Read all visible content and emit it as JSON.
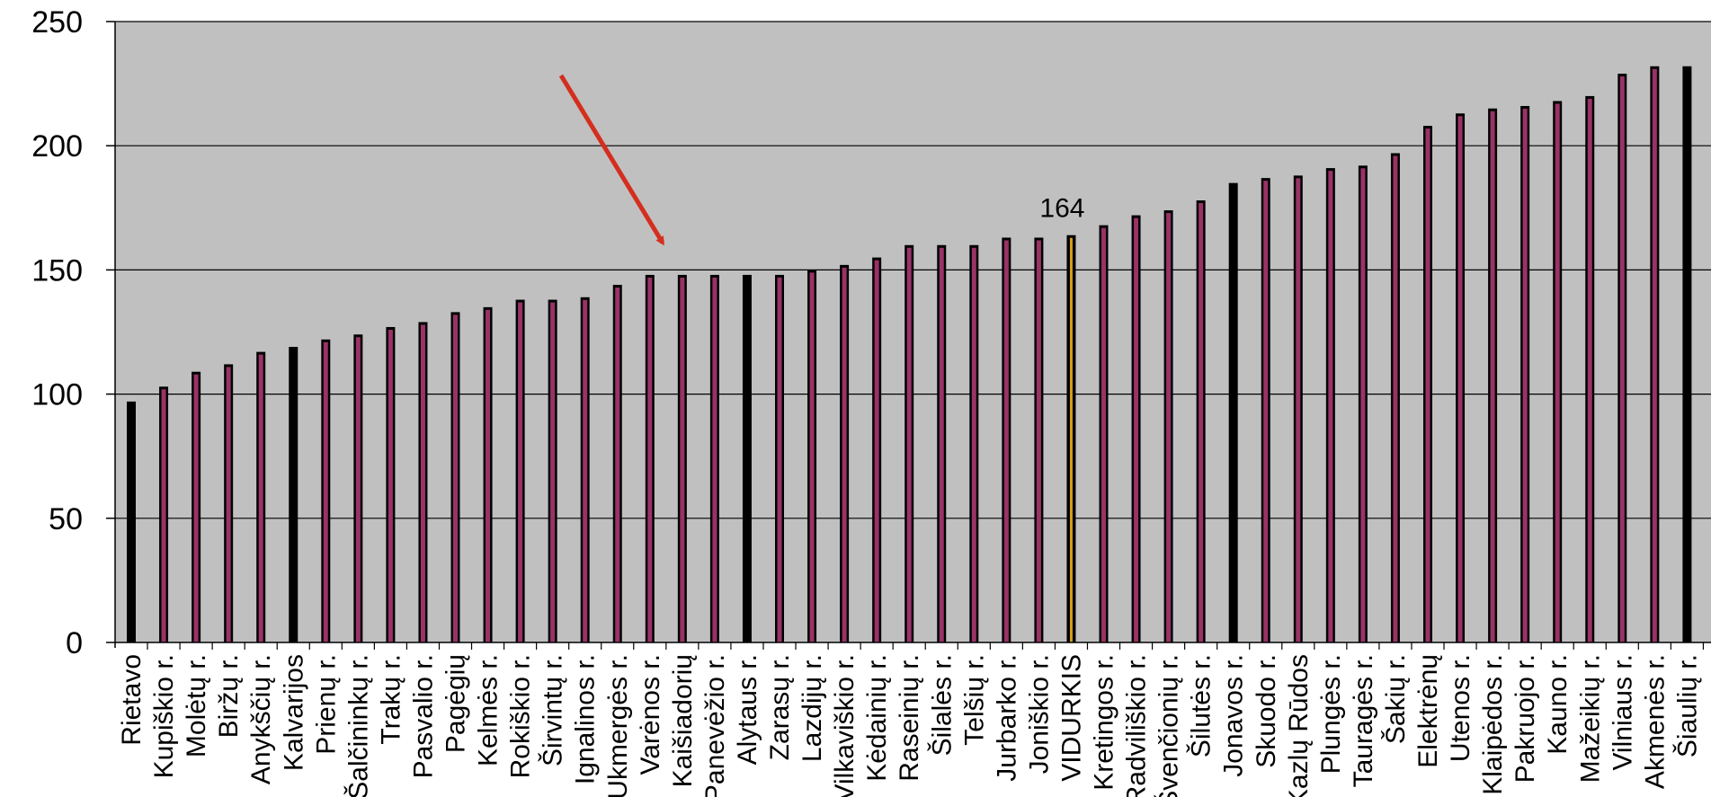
{
  "chart_data": {
    "type": "bar",
    "title": "",
    "xlabel": "",
    "ylabel": "",
    "ylim": [
      0,
      250
    ],
    "yticks": [
      0,
      50,
      100,
      150,
      200,
      250
    ],
    "grid": true,
    "legend": "none",
    "categories": [
      "Rietavo",
      "Kupiškio r.",
      "Molėtų r.",
      "Biržų r.",
      "Anykščių r.",
      "Kalvarijos",
      "Prienų r.",
      "Šalčininkų r.",
      "Trakų r.",
      "Pasvalio r.",
      "Pagėgių",
      "Kelmės r.",
      "Rokiškio r.",
      "Širvintų r.",
      "Ignalinos r.",
      "Ukmergės r.",
      "Varėnos r.",
      "Kaišiadorių",
      "Panevėžio r.",
      "Alytaus r.",
      "Zarasų r.",
      "Lazdijų r.",
      "Vilkaviškio r.",
      "Kėdainių r.",
      "Raseinių r.",
      "Šilalės r.",
      "Telšių r.",
      "Jurbarko r.",
      "Joniškio r.",
      "VIDURKIS",
      "Kretingos r.",
      "Radviliškio r.",
      "Švenčionių r.",
      "Šilutės r.",
      "Jonavos r.",
      "Skuodo r.",
      "Kazlų Rūdos",
      "Plungės r.",
      "Tauragės r.",
      "Šakių r.",
      "Elektrėnų",
      "Utenos r.",
      "Klaipėdos r.",
      "Pakruojo r.",
      "Kauno r.",
      "Mažeikių r.",
      "Vilniaus r.",
      "Akmenės r.",
      "Šiaulių r."
    ],
    "values": [
      97,
      103,
      109,
      112,
      117,
      119,
      122,
      124,
      127,
      129,
      133,
      135,
      138,
      138,
      139,
      144,
      148,
      148,
      148,
      148,
      148,
      150,
      152,
      155,
      160,
      160,
      160,
      163,
      163,
      164,
      168,
      172,
      174,
      178,
      185,
      187,
      188,
      191,
      192,
      197,
      208,
      213,
      215,
      216,
      218,
      220,
      229,
      232,
      232
    ],
    "data_labels": [
      {
        "category": "VIDURKIS",
        "text": "164"
      }
    ],
    "colors": {
      "plot_background": "#c0c0c0",
      "bar_fill": "#993366",
      "bar_edge": "#000000",
      "bar_fill_alt": "#000000",
      "average_bar_fill": "#d4a017",
      "gridline": "#000000",
      "arrow": "#d42e1e"
    },
    "dark_bars": [
      "Rietavo",
      "Kalvarijos",
      "Alytaus r.",
      "Jonavos r.",
      "Šiaulių r."
    ],
    "highlight_bar": "VIDURKIS",
    "arrow_annotation": {
      "points_to": "Varėnos r."
    }
  }
}
